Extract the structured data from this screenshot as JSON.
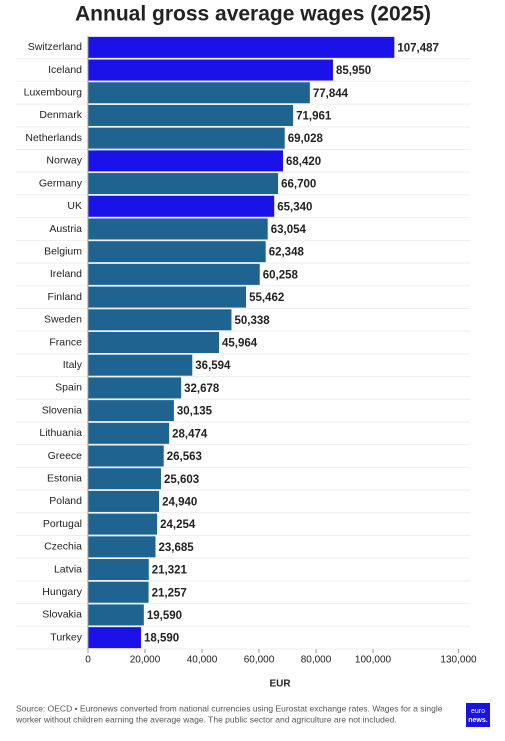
{
  "chart_data": {
    "type": "bar",
    "orientation": "horizontal",
    "title": "Annual gross average wages (2025)",
    "categories": [
      "Switzerland",
      "Iceland",
      "Luxembourg",
      "Denmark",
      "Netherlands",
      "Norway",
      "Germany",
      "UK",
      "Austria",
      "Belgium",
      "Ireland",
      "Finland",
      "Sweden",
      "France",
      "Italy",
      "Spain",
      "Slovenia",
      "Lithuania",
      "Greece",
      "Estonia",
      "Poland",
      "Portugal",
      "Czechia",
      "Latvia",
      "Hungary",
      "Slovakia",
      "Turkey"
    ],
    "values": [
      107487,
      85950,
      77844,
      71961,
      69028,
      68420,
      66700,
      65340,
      63054,
      62348,
      60258,
      55462,
      50338,
      45964,
      36594,
      32678,
      30135,
      28474,
      26563,
      25603,
      24940,
      24254,
      23685,
      21321,
      21257,
      19590,
      18590
    ],
    "value_labels": [
      "107,487",
      "85,950",
      "77,844",
      "71,961",
      "69,028",
      "68,420",
      "66,700",
      "65,340",
      "63,054",
      "62,348",
      "60,258",
      "55,462",
      "50,338",
      "45,964",
      "36,594",
      "32,678",
      "30,135",
      "28,474",
      "26,563",
      "25,603",
      "24,940",
      "24,254",
      "23,685",
      "21,321",
      "21,257",
      "19,590",
      "18,590"
    ],
    "colors": [
      "#1a12e8",
      "#1a12e8",
      "#1f6391",
      "#1f6391",
      "#1f6391",
      "#1a12e8",
      "#1f6391",
      "#1a12e8",
      "#1f6391",
      "#1f6391",
      "#1f6391",
      "#1f6391",
      "#1f6391",
      "#1f6391",
      "#1f6391",
      "#1f6391",
      "#1f6391",
      "#1f6391",
      "#1f6391",
      "#1f6391",
      "#1f6391",
      "#1f6391",
      "#1f6391",
      "#1f6391",
      "#1f6391",
      "#1f6391",
      "#1a12e8"
    ],
    "xlim": [
      0,
      130000
    ],
    "xticks": [
      0,
      {
        "value": 20000,
        "label": "20,000"
      },
      {
        "value": 40000,
        "label": "40,000"
      },
      {
        "value": 60000,
        "label": "60,000"
      },
      {
        "value": 80000,
        "label": "80,000"
      },
      {
        "value": 100000,
        "label": "100,000"
      },
      {
        "value": 130000,
        "label": "130,000"
      }
    ],
    "xlabel": "EUR",
    "source": [
      "Source: OECD • Euronews converted from national currencies using Eurostat exchange rates. Wages for a single",
      "worker without children earning the average wage. The public sector and agriculture are not included."
    ],
    "logo": [
      "euro",
      "news."
    ]
  }
}
